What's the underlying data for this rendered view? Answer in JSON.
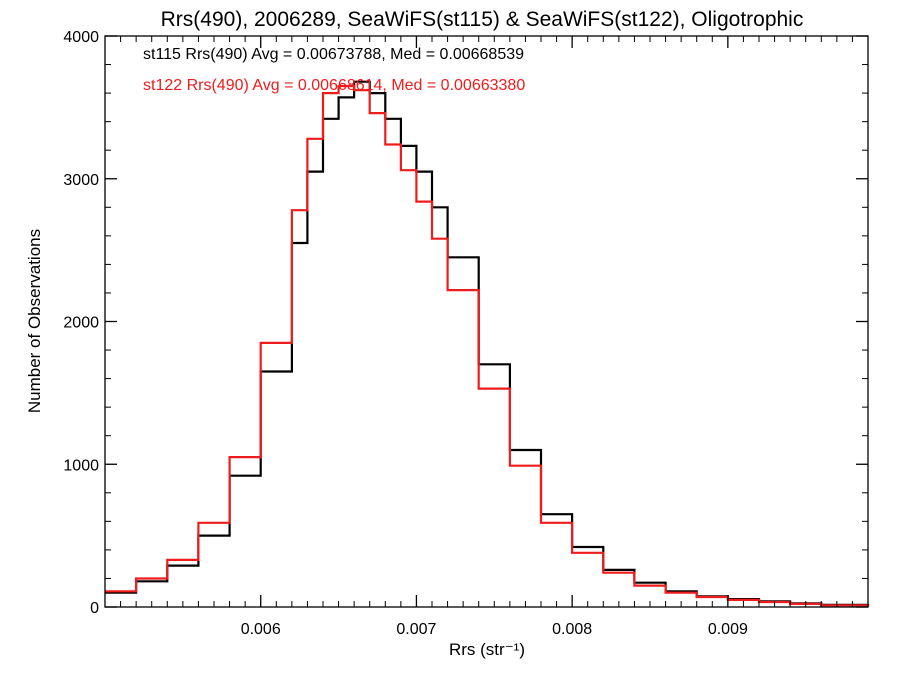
{
  "chart_data": {
    "type": "line",
    "step": true,
    "title": "Rrs(490), 2006289, SeaWiFS(st115) & SeaWiFS(st122), Oligotrophic",
    "xlabel": "Rrs (str⁻¹)",
    "ylabel": "Number of Observations",
    "xlim": [
      0.005,
      0.0099
    ],
    "ylim": [
      0,
      4000
    ],
    "xticks": [
      0.006,
      0.007,
      0.008,
      0.009
    ],
    "xtick_labels": [
      "0.006",
      "0.007",
      "0.008",
      "0.009"
    ],
    "yticks": [
      0,
      1000,
      2000,
      3000,
      4000
    ],
    "ytick_labels": [
      "0",
      "1000",
      "2000",
      "3000",
      "4000"
    ],
    "grid": false,
    "legend_position": "top-left",
    "annotations": [
      {
        "text": "st115 Rrs(490) Avg = 0.00673788, Med = 0.00668539",
        "color": "#000000"
      },
      {
        "text": "st122 Rrs(490) Avg = 0.00668614, Med = 0.00663380",
        "color": "#ee1c1c"
      }
    ],
    "series": [
      {
        "color": "#000000",
        "x": [
          0.005,
          0.0052,
          0.0054,
          0.0056,
          0.0058,
          0.006,
          0.0062,
          0.0063,
          0.0064,
          0.0065,
          0.0066,
          0.0067,
          0.0068,
          0.0069,
          0.007,
          0.0071,
          0.0072,
          0.0074,
          0.0076,
          0.0078,
          0.008,
          0.0082,
          0.0084,
          0.0086,
          0.0088,
          0.009,
          0.0092,
          0.0094,
          0.0096,
          0.0099
        ],
        "y": [
          100,
          180,
          290,
          500,
          920,
          1650,
          2550,
          3050,
          3420,
          3570,
          3680,
          3600,
          3420,
          3230,
          3050,
          2800,
          2450,
          1700,
          1100,
          650,
          420,
          260,
          170,
          110,
          75,
          55,
          40,
          25,
          15,
          5
        ]
      },
      {
        "color": "#ee1c1c",
        "x": [
          0.005,
          0.0052,
          0.0054,
          0.0056,
          0.0058,
          0.006,
          0.0062,
          0.0063,
          0.0064,
          0.0065,
          0.0066,
          0.0067,
          0.0068,
          0.0069,
          0.007,
          0.0071,
          0.0072,
          0.0074,
          0.0076,
          0.0078,
          0.008,
          0.0082,
          0.0084,
          0.0086,
          0.0088,
          0.009,
          0.0092,
          0.0094,
          0.0096,
          0.0099
        ],
        "y": [
          110,
          200,
          330,
          590,
          1050,
          1850,
          2780,
          3280,
          3600,
          3650,
          3620,
          3460,
          3240,
          3060,
          2840,
          2580,
          2220,
          1530,
          990,
          590,
          380,
          240,
          150,
          100,
          70,
          50,
          35,
          22,
          12,
          5
        ]
      }
    ]
  }
}
